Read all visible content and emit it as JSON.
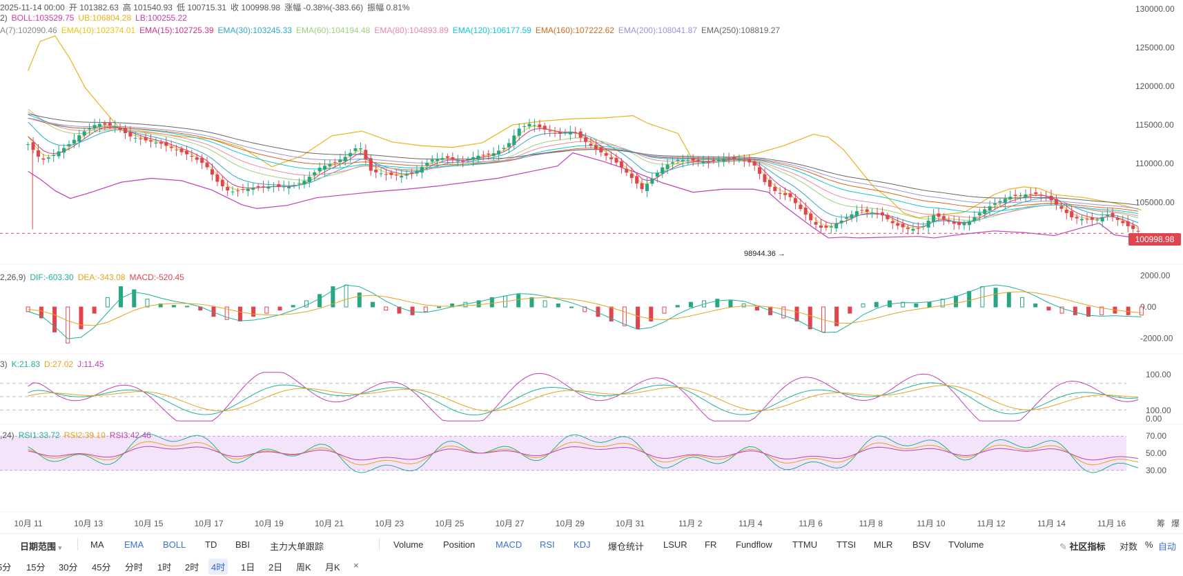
{
  "header": {
    "ohlc_line": [
      {
        "text": "2025-11-14 00:00",
        "color": "#555555"
      },
      {
        "text": "开 101382.63",
        "color": "#555555"
      },
      {
        "text": "高 101540.93",
        "color": "#555555"
      },
      {
        "text": "低 100715.31",
        "color": "#555555"
      },
      {
        "text": "收 100998.98",
        "color": "#555555"
      },
      {
        "text": "涨幅 -0.38%(-383.66)",
        "color": "#555555"
      },
      {
        "text": "振幅 0.81%",
        "color": "#555555"
      }
    ],
    "boll_line": [
      {
        "text": "2)",
        "color": "#555555"
      },
      {
        "text": "BOLL:103529.75",
        "color": "#d23ca5"
      },
      {
        "text": "UB:106804.28",
        "color": "#e9b317"
      },
      {
        "text": "LB:100255.22",
        "color": "#c03fb6"
      }
    ],
    "ema_line": [
      {
        "text": "A(7):102090.46",
        "color": "#888888"
      },
      {
        "text": "EMA(10):102374.01",
        "color": "#e6c617"
      },
      {
        "text": "EMA(15):102725.39",
        "color": "#d1357f"
      },
      {
        "text": "EMA(30):103245.33",
        "color": "#2ea8c9"
      },
      {
        "text": "EMA(60):104194.48",
        "color": "#9ed17a"
      },
      {
        "text": "EMA(80):104893.89",
        "color": "#ea8aa0"
      },
      {
        "text": "EMA(120):106177.59",
        "color": "#10c7d8"
      },
      {
        "text": "EMA(160):107222.62",
        "color": "#d2691e"
      },
      {
        "text": "EMA(200):108041.87",
        "color": "#a090d8"
      },
      {
        "text": "EMA(250):108819.27",
        "color": "#666666"
      }
    ]
  },
  "macd_legend": [
    {
      "text": "2,26,9)",
      "color": "#555555"
    },
    {
      "text": "DIF:-603.30",
      "color": "#1bb19a"
    },
    {
      "text": "DEA:-343.08",
      "color": "#e7a31a"
    },
    {
      "text": "MACD:-520.45",
      "color": "#e0454f"
    }
  ],
  "kdj_legend": [
    {
      "text": "3)",
      "color": "#555555"
    },
    {
      "text": "K:21.83",
      "color": "#1bb19a"
    },
    {
      "text": "D:27.02",
      "color": "#e7a31a"
    },
    {
      "text": "J:11.45",
      "color": "#c03fb6"
    }
  ],
  "rsi_legend": [
    {
      "text": ",24)",
      "color": "#555555"
    },
    {
      "text": "RSI1:33.72",
      "color": "#1bb19a"
    },
    {
      "text": "RSI2:39.10",
      "color": "#e7a31a"
    },
    {
      "text": "RSI3:42.46",
      "color": "#c03fb6"
    }
  ],
  "current_price_tag": "100998.98",
  "low_annotation": "98944.36 →",
  "price_axis_labels": [
    "130000.00",
    "125000.00",
    "120000.00",
    "115000.00",
    "110000.00",
    "105000.00",
    "100000.00"
  ],
  "macd_axis_labels": [
    "2000.00",
    "0.00",
    "-2000.00"
  ],
  "kdj_axis_labels": [
    "100.00",
    "0.00"
  ],
  "rsi_axis_labels": [
    "100.00",
    "70.00",
    "50.00",
    "30.00"
  ],
  "date_labels": [
    "10月 11",
    "10月 13",
    "10月 15",
    "10月 17",
    "10月 19",
    "10月 21",
    "10月 23",
    "10月 25",
    "10月 27",
    "10月 29",
    "10月 31",
    "11月 2",
    "11月 4",
    "11月 6",
    "11月 8",
    "11月 10",
    "11月 12",
    "11月 14",
    "11月 16"
  ],
  "corner_labels": [
    "筹",
    "爆"
  ],
  "toolbar": {
    "date_range": "日期范围",
    "overlays": [
      "MA",
      "EMA",
      "BOLL",
      "TD",
      "BBI",
      "主力大单跟踪"
    ],
    "indicators": [
      "Volume",
      "Position",
      "MACD",
      "RSI",
      "KDJ",
      "爆仓统计",
      "LSUR",
      "FR",
      "Fundflow",
      "TTMU",
      "TTSI",
      "MLR",
      "BSV",
      "TVolume"
    ],
    "community": "社区指标",
    "log": "对数",
    "percent": "%",
    "auto": "自动"
  },
  "timeframes": [
    "5分",
    "15分",
    "30分",
    "45分",
    "分时",
    "1时",
    "2时",
    "4时",
    "1日",
    "2日",
    "周K",
    "月K"
  ],
  "active_timeframe": "4时",
  "close_symbol": "×",
  "colors": {
    "up": "#26a682",
    "down": "#e0454f",
    "rsi_band": "#f3e4fa"
  },
  "chart_data": {
    "type": "candlestick",
    "title": "",
    "x_labels": [
      "10月 11",
      "10月 13",
      "10月 15",
      "10月 17",
      "10月 19",
      "10月 21",
      "10月 23",
      "10月 25",
      "10月 27",
      "10月 29",
      "10月 31",
      "11月 2",
      "11月 4",
      "11月 6",
      "11月 8",
      "11月 10",
      "11月 12",
      "11月 14",
      "11月 16"
    ],
    "price_ylim": [
      100000,
      130000
    ],
    "last_close": 100998.98,
    "period_low": 98944.36,
    "price_path": [
      [
        10.9,
        112500
      ],
      [
        11.0,
        112200
      ],
      [
        11.2,
        111000
      ],
      [
        11.4,
        110500
      ],
      [
        11.7,
        111000
      ],
      [
        12.2,
        112300
      ],
      [
        12.7,
        114000
      ],
      [
        13.2,
        115200
      ],
      [
        13.8,
        114800
      ],
      [
        14.3,
        113500
      ],
      [
        14.8,
        113000
      ],
      [
        15.3,
        112600
      ],
      [
        15.8,
        111800
      ],
      [
        16.3,
        111000
      ],
      [
        16.8,
        109800
      ],
      [
        17.2,
        107600
      ],
      [
        17.6,
        106300
      ],
      [
        18.1,
        106700
      ],
      [
        18.6,
        107000
      ],
      [
        19.1,
        107100
      ],
      [
        19.6,
        107000
      ],
      [
        20.1,
        107800
      ],
      [
        20.6,
        109500
      ],
      [
        21.1,
        110200
      ],
      [
        21.5,
        111000
      ],
      [
        21.9,
        112400
      ],
      [
        22.3,
        109000
      ],
      [
        22.8,
        108600
      ],
      [
        23.3,
        108400
      ],
      [
        23.8,
        109000
      ],
      [
        24.3,
        110500
      ],
      [
        24.8,
        110800
      ],
      [
        25.3,
        110200
      ],
      [
        25.8,
        111000
      ],
      [
        26.3,
        111200
      ],
      [
        26.8,
        112200
      ],
      [
        27.2,
        114500
      ],
      [
        27.6,
        115200
      ],
      [
        28.0,
        114500
      ],
      [
        28.5,
        113800
      ],
      [
        29.0,
        114200
      ],
      [
        29.5,
        112600
      ],
      [
        30.0,
        111300
      ],
      [
        30.5,
        110000
      ],
      [
        30.9,
        108400
      ],
      [
        31.3,
        106700
      ],
      [
        31.6,
        107900
      ],
      [
        32.0,
        109600
      ],
      [
        32.5,
        110500
      ],
      [
        33.0,
        110400
      ],
      [
        33.5,
        110200
      ],
      [
        34.0,
        110600
      ],
      [
        34.5,
        110600
      ],
      [
        35.0,
        110000
      ],
      [
        35.4,
        107500
      ],
      [
        35.8,
        106200
      ],
      [
        36.2,
        105800
      ],
      [
        36.6,
        104000
      ],
      [
        37.0,
        102300
      ],
      [
        37.3,
        101600
      ],
      [
        37.6,
        101900
      ],
      [
        38.0,
        102800
      ],
      [
        38.5,
        104000
      ],
      [
        38.9,
        103700
      ],
      [
        39.3,
        103300
      ],
      [
        39.7,
        102100
      ],
      [
        40.2,
        101500
      ],
      [
        40.6,
        101700
      ],
      [
        41.0,
        103400
      ],
      [
        41.4,
        102700
      ],
      [
        41.8,
        102000
      ],
      [
        42.2,
        102600
      ],
      [
        42.6,
        103900
      ],
      [
        43.0,
        104800
      ],
      [
        43.5,
        105700
      ],
      [
        44.0,
        106000
      ],
      [
        44.4,
        106100
      ],
      [
        44.8,
        105600
      ],
      [
        45.2,
        104300
      ],
      [
        45.6,
        103000
      ],
      [
        46.0,
        102800
      ],
      [
        46.4,
        102700
      ],
      [
        46.8,
        103500
      ],
      [
        47.2,
        102500
      ],
      [
        47.5,
        101800
      ],
      [
        47.9,
        100999
      ]
    ],
    "bollinger": {
      "upper": [
        [
          10.9,
          122000
        ],
        [
          11.3,
          125800
        ],
        [
          11.8,
          126500
        ],
        [
          12.3,
          123500
        ],
        [
          12.8,
          119800
        ],
        [
          13.4,
          117000
        ],
        [
          14.0,
          114300
        ],
        [
          15.0,
          114000
        ],
        [
          16.0,
          113500
        ],
        [
          17.0,
          113200
        ],
        [
          18.0,
          112100
        ],
        [
          19.0,
          109600
        ],
        [
          20.0,
          111000
        ],
        [
          21.0,
          113600
        ],
        [
          22.0,
          114200
        ],
        [
          23.0,
          112800
        ],
        [
          24.0,
          112300
        ],
        [
          25.0,
          112100
        ],
        [
          26.0,
          112700
        ],
        [
          27.0,
          115000
        ],
        [
          28.0,
          115500
        ],
        [
          29.0,
          115800
        ],
        [
          30.0,
          115900
        ],
        [
          31.0,
          116200
        ],
        [
          31.5,
          115200
        ],
        [
          32.5,
          113900
        ],
        [
          33.0,
          110400
        ],
        [
          34.0,
          110700
        ],
        [
          35.0,
          111200
        ],
        [
          36.0,
          112300
        ],
        [
          37.0,
          113800
        ],
        [
          37.5,
          113400
        ],
        [
          38.0,
          111800
        ],
        [
          39.0,
          107000
        ],
        [
          39.5,
          105500
        ],
        [
          40.0,
          103600
        ],
        [
          40.5,
          103000
        ],
        [
          41.0,
          103300
        ],
        [
          41.5,
          103500
        ],
        [
          42.0,
          103700
        ],
        [
          42.5,
          104800
        ],
        [
          43.0,
          106000
        ],
        [
          43.5,
          106700
        ],
        [
          44.0,
          107000
        ],
        [
          44.5,
          106800
        ],
        [
          45.0,
          106000
        ],
        [
          46.0,
          105600
        ],
        [
          47.0,
          104900
        ],
        [
          47.9,
          104000
        ]
      ],
      "lower": [
        [
          10.9,
          109000
        ],
        [
          11.3,
          108000
        ],
        [
          11.8,
          106500
        ],
        [
          12.3,
          105500
        ],
        [
          13.0,
          106300
        ],
        [
          14.0,
          107600
        ],
        [
          15.0,
          108100
        ],
        [
          16.0,
          107800
        ],
        [
          17.0,
          106600
        ],
        [
          18.0,
          104700
        ],
        [
          18.5,
          104200
        ],
        [
          19.5,
          104600
        ],
        [
          20.5,
          105600
        ],
        [
          21.5,
          106000
        ],
        [
          22.5,
          106400
        ],
        [
          23.5,
          106700
        ],
        [
          24.5,
          107100
        ],
        [
          25.5,
          107600
        ],
        [
          26.5,
          108100
        ],
        [
          27.5,
          108900
        ],
        [
          28.5,
          109700
        ],
        [
          29.0,
          111400
        ],
        [
          30.0,
          110300
        ],
        [
          31.0,
          109000
        ],
        [
          32.0,
          107500
        ],
        [
          33.0,
          106300
        ],
        [
          34.0,
          106700
        ],
        [
          35.0,
          106700
        ],
        [
          35.5,
          106300
        ],
        [
          36.0,
          104600
        ],
        [
          37.0,
          101700
        ],
        [
          37.5,
          100400
        ],
        [
          38.0,
          100500
        ],
        [
          38.5,
          100400
        ],
        [
          39.5,
          100500
        ],
        [
          40.5,
          100600
        ],
        [
          41.0,
          100400
        ],
        [
          42.0,
          100900
        ],
        [
          43.0,
          101300
        ],
        [
          44.0,
          101100
        ],
        [
          45.0,
          100700
        ],
        [
          46.0,
          101800
        ],
        [
          46.5,
          102300
        ],
        [
          47.0,
          100800
        ],
        [
          47.9,
          100300
        ]
      ]
    },
    "macd_ylim": [
      -3000,
      3000
    ],
    "macd_hist": [
      -300,
      -700,
      -1600,
      -2300,
      -1400,
      -400,
      600,
      1300,
      1100,
      500,
      200,
      100,
      50,
      -200,
      -600,
      -800,
      -900,
      -600,
      -400,
      -200,
      100,
      400,
      800,
      1300,
      1400,
      900,
      300,
      -200,
      -400,
      -500,
      -300,
      0,
      200,
      300,
      400,
      600,
      700,
      800,
      600,
      400,
      200,
      0,
      -300,
      -600,
      -900,
      -1200,
      -1400,
      -900,
      -400,
      100,
      300,
      400,
      500,
      400,
      200,
      -200,
      -500,
      -700,
      -900,
      -1400,
      -1600,
      -1200,
      -400,
      200,
      300,
      400,
      300,
      200,
      300,
      500,
      700,
      1000,
      1300,
      1200,
      900,
      600,
      200,
      -200,
      -400,
      -500,
      -600,
      -500,
      -400,
      -500,
      -520
    ],
    "kdj_ylim": [
      0,
      100
    ],
    "rsi_ylim": [
      20,
      100
    ],
    "rsi_band": [
      30,
      70
    ]
  }
}
